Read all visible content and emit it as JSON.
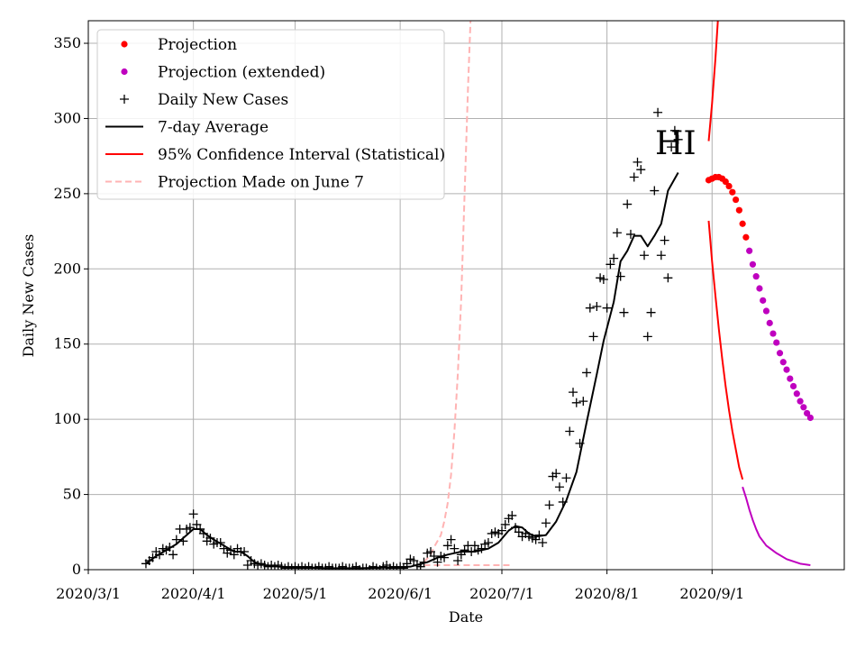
{
  "chart_data": {
    "type": "line",
    "title": "",
    "annotation": "HI",
    "xlabel": "Date",
    "ylabel": "Daily New Cases",
    "ylim": [
      0,
      365
    ],
    "x_ticks": [
      {
        "label": "2020/3/1",
        "day": 0
      },
      {
        "label": "2020/4/1",
        "day": 31
      },
      {
        "label": "2020/5/1",
        "day": 61
      },
      {
        "label": "2020/6/1",
        "day": 92
      },
      {
        "label": "2020/7/1",
        "day": 122
      },
      {
        "label": "2020/8/1",
        "day": 153
      },
      {
        "label": "2020/9/1",
        "day": 184
      }
    ],
    "y_ticks": [
      0,
      50,
      100,
      150,
      200,
      250,
      300,
      350
    ],
    "x_range_days": [
      0,
      223
    ],
    "grid": true,
    "legend": {
      "position": "top-left",
      "entries": [
        {
          "label": "Projection",
          "color": "#ff0000",
          "style": "dot"
        },
        {
          "label": "Projection (extended)",
          "color": "#bf00bf",
          "style": "dot"
        },
        {
          "label": "Daily New Cases",
          "color": "#000000",
          "style": "plus"
        },
        {
          "label": "7-day Average",
          "color": "#000000",
          "style": "line"
        },
        {
          "label": "95% Confidence Interval (Statistical)",
          "color": "#ff0000",
          "style": "line"
        },
        {
          "label": "Projection Made on June 7",
          "color": "#ffb3b3",
          "style": "dashed"
        }
      ]
    },
    "series": [
      {
        "name": "Daily New Cases",
        "color": "#000000",
        "points": [
          [
            17,
            4
          ],
          [
            18,
            6
          ],
          [
            19,
            8
          ],
          [
            20,
            12
          ],
          [
            21,
            10
          ],
          [
            22,
            14
          ],
          [
            23,
            13
          ],
          [
            24,
            15
          ],
          [
            25,
            10
          ],
          [
            26,
            20
          ],
          [
            27,
            27
          ],
          [
            28,
            19
          ],
          [
            29,
            27
          ],
          [
            30,
            28
          ],
          [
            31,
            37
          ],
          [
            32,
            30
          ],
          [
            33,
            27
          ],
          [
            34,
            24
          ],
          [
            35,
            19
          ],
          [
            36,
            21
          ],
          [
            37,
            17
          ],
          [
            38,
            18
          ],
          [
            39,
            18
          ],
          [
            40,
            14
          ],
          [
            41,
            11
          ],
          [
            42,
            13
          ],
          [
            43,
            10
          ],
          [
            44,
            14
          ],
          [
            45,
            12
          ],
          [
            46,
            12
          ],
          [
            47,
            3
          ],
          [
            48,
            6
          ],
          [
            49,
            4
          ],
          [
            50,
            3
          ],
          [
            51,
            4
          ],
          [
            52,
            3
          ],
          [
            53,
            2
          ],
          [
            54,
            3
          ],
          [
            55,
            2
          ],
          [
            56,
            3
          ],
          [
            57,
            2
          ],
          [
            58,
            1
          ],
          [
            59,
            2
          ],
          [
            60,
            1
          ],
          [
            61,
            2
          ],
          [
            62,
            1
          ],
          [
            63,
            2
          ],
          [
            64,
            1
          ],
          [
            65,
            2
          ],
          [
            66,
            1
          ],
          [
            67,
            1
          ],
          [
            68,
            2
          ],
          [
            69,
            1
          ],
          [
            70,
            1
          ],
          [
            71,
            2
          ],
          [
            72,
            1
          ],
          [
            73,
            1
          ],
          [
            74,
            1
          ],
          [
            75,
            2
          ],
          [
            76,
            1
          ],
          [
            77,
            1
          ],
          [
            78,
            1
          ],
          [
            79,
            2
          ],
          [
            80,
            0
          ],
          [
            81,
            1
          ],
          [
            82,
            1
          ],
          [
            83,
            0
          ],
          [
            84,
            2
          ],
          [
            85,
            1
          ],
          [
            86,
            0
          ],
          [
            87,
            2
          ],
          [
            88,
            3
          ],
          [
            89,
            1
          ],
          [
            90,
            2
          ],
          [
            91,
            1
          ],
          [
            92,
            2
          ],
          [
            93,
            1
          ],
          [
            94,
            4
          ],
          [
            95,
            7
          ],
          [
            96,
            6
          ],
          [
            97,
            3
          ],
          [
            98,
            2
          ],
          [
            99,
            5
          ],
          [
            100,
            11
          ],
          [
            101,
            12
          ],
          [
            102,
            9
          ],
          [
            103,
            5
          ],
          [
            104,
            9
          ],
          [
            105,
            8
          ],
          [
            106,
            16
          ],
          [
            107,
            20
          ],
          [
            108,
            14
          ],
          [
            109,
            6
          ],
          [
            110,
            10
          ],
          [
            111,
            13
          ],
          [
            112,
            16
          ],
          [
            113,
            12
          ],
          [
            114,
            16
          ],
          [
            115,
            13
          ],
          [
            116,
            14
          ],
          [
            117,
            17
          ],
          [
            118,
            18
          ],
          [
            119,
            24
          ],
          [
            120,
            25
          ],
          [
            121,
            24
          ],
          [
            122,
            26
          ],
          [
            123,
            30
          ],
          [
            124,
            34
          ],
          [
            125,
            36
          ],
          [
            126,
            28
          ],
          [
            127,
            25
          ],
          [
            128,
            22
          ],
          [
            129,
            24
          ],
          [
            130,
            22
          ],
          [
            131,
            21
          ],
          [
            132,
            20
          ],
          [
            133,
            23
          ],
          [
            134,
            18
          ],
          [
            135,
            31
          ],
          [
            136,
            43
          ],
          [
            137,
            62
          ],
          [
            138,
            64
          ],
          [
            139,
            55
          ],
          [
            140,
            45
          ],
          [
            141,
            61
          ],
          [
            142,
            92
          ],
          [
            143,
            118
          ],
          [
            144,
            111
          ],
          [
            145,
            84
          ],
          [
            146,
            112
          ],
          [
            147,
            131
          ],
          [
            148,
            174
          ],
          [
            149,
            155
          ],
          [
            150,
            175
          ],
          [
            151,
            194
          ],
          [
            152,
            193
          ],
          [
            153,
            174
          ],
          [
            154,
            203
          ],
          [
            155,
            207
          ],
          [
            156,
            224
          ],
          [
            157,
            195
          ],
          [
            158,
            171
          ],
          [
            159,
            243
          ],
          [
            160,
            223
          ],
          [
            161,
            261
          ],
          [
            162,
            271
          ],
          [
            163,
            266
          ],
          [
            164,
            209
          ],
          [
            165,
            155
          ],
          [
            166,
            171
          ],
          [
            167,
            252
          ],
          [
            168,
            304
          ],
          [
            169,
            209
          ],
          [
            170,
            219
          ],
          [
            171,
            194
          ],
          [
            172,
            281
          ],
          [
            173,
            292
          ],
          [
            174,
            286
          ]
        ]
      },
      {
        "name": "7-day Average",
        "color": "#000000",
        "points": [
          [
            17,
            4
          ],
          [
            20,
            9
          ],
          [
            23,
            13
          ],
          [
            26,
            17
          ],
          [
            29,
            23
          ],
          [
            31,
            27
          ],
          [
            33,
            27
          ],
          [
            35,
            23
          ],
          [
            37,
            20
          ],
          [
            40,
            16
          ],
          [
            43,
            12
          ],
          [
            45,
            12
          ],
          [
            47,
            9
          ],
          [
            49,
            5
          ],
          [
            52,
            3
          ],
          [
            56,
            2
          ],
          [
            62,
            1.5
          ],
          [
            70,
            1
          ],
          [
            80,
            1
          ],
          [
            90,
            1.5
          ],
          [
            95,
            2
          ],
          [
            100,
            5
          ],
          [
            103,
            8
          ],
          [
            106,
            10
          ],
          [
            110,
            12
          ],
          [
            114,
            12
          ],
          [
            118,
            14
          ],
          [
            121,
            18
          ],
          [
            124,
            26
          ],
          [
            126,
            29
          ],
          [
            128,
            28
          ],
          [
            130,
            24
          ],
          [
            132,
            22
          ],
          [
            135,
            23
          ],
          [
            138,
            32
          ],
          [
            141,
            46
          ],
          [
            144,
            65
          ],
          [
            147,
            98
          ],
          [
            150,
            130
          ],
          [
            152,
            152
          ],
          [
            155,
            178
          ],
          [
            157,
            205
          ],
          [
            159,
            212
          ],
          [
            161,
            222
          ],
          [
            163,
            222
          ],
          [
            165,
            215
          ],
          [
            167,
            222
          ],
          [
            169,
            230
          ],
          [
            171,
            252
          ],
          [
            174,
            264
          ]
        ]
      },
      {
        "name": "Projection",
        "color": "#ff0000",
        "points": [
          [
            183,
            259
          ],
          [
            184,
            260
          ],
          [
            185,
            261
          ],
          [
            186,
            261
          ],
          [
            187,
            260
          ],
          [
            188,
            258
          ],
          [
            189,
            255
          ],
          [
            190,
            251
          ],
          [
            191,
            246
          ],
          [
            192,
            239
          ],
          [
            193,
            230
          ],
          [
            194,
            221
          ]
        ]
      },
      {
        "name": "Projection (extended)",
        "color": "#bf00bf",
        "points": [
          [
            195,
            212
          ],
          [
            196,
            203
          ],
          [
            197,
            195
          ],
          [
            198,
            187
          ],
          [
            199,
            179
          ],
          [
            200,
            172
          ],
          [
            201,
            164
          ],
          [
            202,
            157
          ],
          [
            203,
            151
          ],
          [
            204,
            144
          ],
          [
            205,
            138
          ],
          [
            206,
            133
          ],
          [
            207,
            127
          ],
          [
            208,
            122
          ],
          [
            209,
            117
          ],
          [
            210,
            112
          ],
          [
            211,
            108
          ],
          [
            212,
            104
          ],
          [
            213,
            101
          ]
        ]
      },
      {
        "name": "95% CI Upper",
        "color": "#ff0000",
        "points": [
          [
            183,
            285
          ],
          [
            184,
            310
          ],
          [
            185,
            340
          ],
          [
            186,
            375
          ]
        ]
      },
      {
        "name": "95% CI Lower",
        "color": "#ff0000",
        "points": [
          [
            183,
            232
          ],
          [
            184,
            205
          ],
          [
            185,
            182
          ],
          [
            186,
            160
          ],
          [
            187,
            140
          ],
          [
            188,
            122
          ],
          [
            189,
            106
          ],
          [
            190,
            92
          ],
          [
            191,
            80
          ],
          [
            192,
            68
          ],
          [
            193,
            60
          ]
        ]
      },
      {
        "name": "95% CI Lower (extended)",
        "color": "#bf00bf",
        "points": [
          [
            193,
            55
          ],
          [
            194,
            48
          ],
          [
            195,
            40
          ],
          [
            196,
            33
          ],
          [
            197,
            27
          ],
          [
            198,
            22
          ],
          [
            200,
            16
          ],
          [
            203,
            11
          ],
          [
            206,
            7
          ],
          [
            210,
            4
          ],
          [
            213,
            3
          ]
        ]
      },
      {
        "name": "Projection Made on June 7 (upper)",
        "color": "#ffb3b3",
        "points": [
          [
            99,
            5
          ],
          [
            101,
            10
          ],
          [
            102,
            15
          ],
          [
            104,
            23
          ],
          [
            105,
            32
          ],
          [
            106,
            44
          ],
          [
            107,
            63
          ],
          [
            108,
            92
          ],
          [
            109,
            130
          ],
          [
            110,
            180
          ],
          [
            111,
            250
          ],
          [
            112,
            320
          ],
          [
            113,
            380
          ]
        ]
      },
      {
        "name": "Projection Made on June 7 (lower)",
        "color": "#ffb3b3",
        "points": [
          [
            99,
            3
          ],
          [
            105,
            3
          ],
          [
            110,
            3
          ],
          [
            115,
            3
          ],
          [
            120,
            3
          ],
          [
            125,
            3
          ]
        ]
      }
    ]
  }
}
